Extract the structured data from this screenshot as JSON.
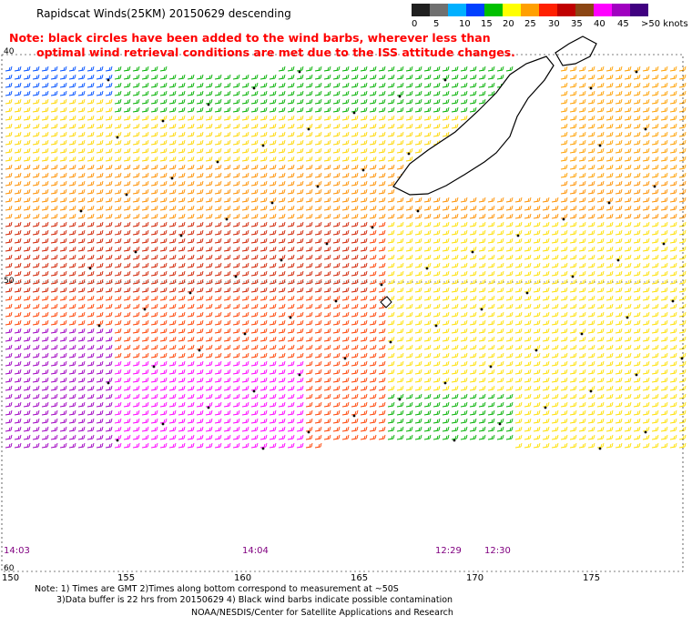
{
  "header": {
    "title": "Rapidscat Winds(25KM) 20150629 descending",
    "note_line1": "Note: black circles have been added to the wind barbs, wherever less than",
    "note_line2": "optimal wind retrieval conditions are met due to the ISS attitude changes."
  },
  "legend": {
    "labels": [
      "0",
      "5",
      "10",
      "15",
      "20",
      "25",
      "30",
      "35",
      "40",
      "45",
      ">50 knots"
    ],
    "colors": [
      "#202020",
      "#707070",
      "#00b0ff",
      "#0040ff",
      "#00c000",
      "#ffff00",
      "#ffa000",
      "#ff2000",
      "#c00000",
      "#8b4513",
      "#ff00ff",
      "#a000c0",
      "#400080"
    ]
  },
  "map": {
    "lon_ticks": [
      "150",
      "155",
      "160",
      "165",
      "170",
      "175"
    ],
    "lat_labels": [
      "40",
      "50",
      "60"
    ],
    "times": [
      "14:03",
      "14:04",
      "12:29",
      "12:30"
    ]
  },
  "footer": {
    "line1": "Note: 1) Times are GMT 2)Times along bottom correspond to measurement at ~50S",
    "line2": "3)Data buffer is 22 hrs from 20150629 4) Black wind barbs indicate possible contamination",
    "line3": "NOAA/NESDIS/Center for Satellite Applications and Research"
  }
}
